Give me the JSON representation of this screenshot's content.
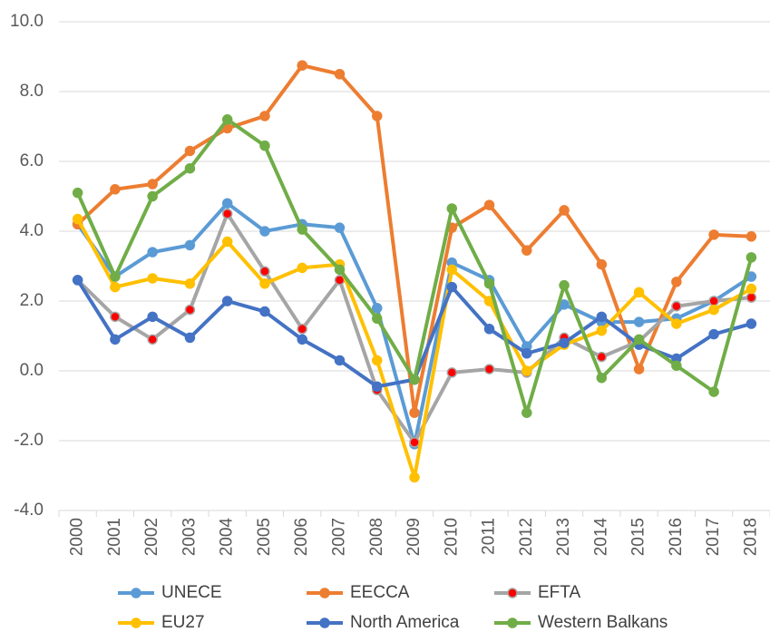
{
  "chart_data": {
    "type": "line",
    "categories": [
      "2000",
      "2001",
      "2002",
      "2003",
      "2004",
      "2005",
      "2006",
      "2007",
      "2008",
      "2009",
      "2010",
      "2011",
      "2012",
      "2013",
      "2014",
      "2015",
      "2016",
      "2017",
      "2018"
    ],
    "ylim": [
      -4,
      10
    ],
    "yticks": [
      {
        "value": -4,
        "label": "-4.0"
      },
      {
        "value": -2,
        "label": "-2.0"
      },
      {
        "value": 0,
        "label": "0.0"
      },
      {
        "value": 2,
        "label": "2.0"
      },
      {
        "value": 4,
        "label": "4.0"
      },
      {
        "value": 6,
        "label": "6.0"
      },
      {
        "value": 8,
        "label": "8.0"
      },
      {
        "value": 10,
        "label": "10.0"
      }
    ],
    "grid": true,
    "legend": "bottom",
    "series": [
      {
        "name": "UNECE",
        "color": "#5b9bd5",
        "values": [
          4.2,
          2.7,
          3.4,
          3.6,
          4.8,
          4.0,
          4.2,
          4.1,
          1.8,
          -2.1,
          3.1,
          2.6,
          0.7,
          1.9,
          1.4,
          1.4,
          1.5,
          2.0,
          2.7
        ]
      },
      {
        "name": "EECCA",
        "color": "#ed7d31",
        "values": [
          4.2,
          5.2,
          5.35,
          6.3,
          6.95,
          7.3,
          8.75,
          8.5,
          7.3,
          -1.2,
          4.1,
          4.75,
          3.45,
          4.6,
          3.05,
          0.05,
          2.55,
          3.9,
          3.85
        ]
      },
      {
        "name": "EFTA",
        "color": "#a5a5a5",
        "marker_color": "#ff0000",
        "values": [
          2.6,
          1.55,
          0.9,
          1.75,
          4.5,
          2.85,
          1.2,
          2.6,
          -0.55,
          -2.05,
          -0.05,
          0.05,
          -0.05,
          0.95,
          0.4,
          0.85,
          1.85,
          2.0,
          2.1
        ]
      },
      {
        "name": "EU27",
        "color": "#ffc000",
        "values": [
          4.35,
          2.4,
          2.65,
          2.5,
          3.7,
          2.5,
          2.95,
          3.05,
          0.3,
          -3.05,
          2.9,
          2.0,
          0.0,
          0.75,
          1.15,
          2.25,
          1.35,
          1.75,
          2.35
        ]
      },
      {
        "name": "North America",
        "color": "#4472c4",
        "values": [
          2.6,
          0.9,
          1.55,
          0.95,
          2.0,
          1.7,
          0.9,
          0.3,
          -0.45,
          -0.25,
          2.4,
          1.2,
          0.5,
          0.8,
          1.55,
          0.75,
          0.35,
          1.05,
          1.35
        ]
      },
      {
        "name": "Western Balkans",
        "color": "#70ad47",
        "values": [
          5.1,
          2.7,
          5.0,
          5.8,
          7.2,
          6.45,
          4.05,
          2.9,
          1.5,
          -0.25,
          4.65,
          2.5,
          -1.2,
          2.45,
          -0.2,
          0.9,
          0.15,
          -0.6,
          3.25
        ]
      }
    ]
  }
}
